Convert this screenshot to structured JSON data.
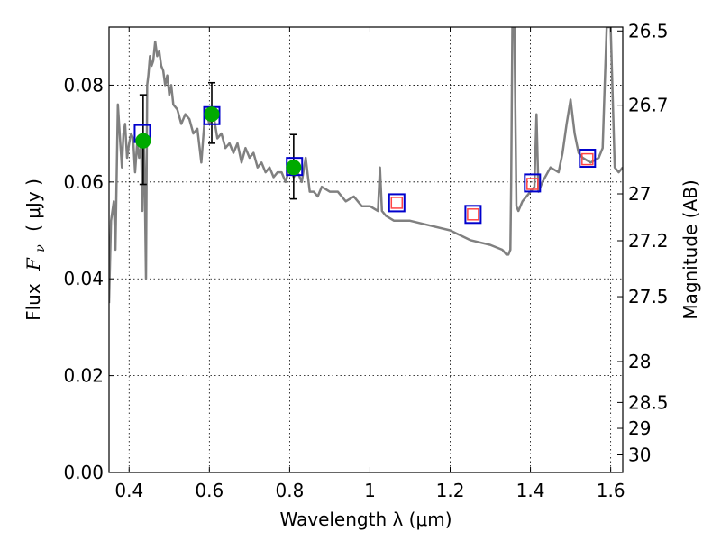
{
  "chart_data": {
    "type": "scatter",
    "xlabel": "Wavelength  λ (μm)",
    "ylabel_prefix": "Flux",
    "ylabel_symbol": "F",
    "ylabel_subscript": "ν",
    "ylabel_unit": "( μJy )",
    "y2label": "Magnitude (AB)",
    "xlim": [
      0.35,
      1.63
    ],
    "ylim": [
      0.0,
      0.092
    ],
    "grid": true,
    "x_ticks": [
      0.4,
      0.6,
      0.8,
      1.0,
      1.2,
      1.4,
      1.6
    ],
    "x_tick_labels": [
      "0.4",
      "0.6",
      "0.8",
      "1",
      "1.2",
      "1.4",
      "1.6"
    ],
    "y_ticks": [
      0.0,
      0.02,
      0.04,
      0.06,
      0.08
    ],
    "y_tick_labels": [
      "0.00",
      "0.02",
      "0.04",
      "0.06",
      "0.08"
    ],
    "y2_ticks": [
      26.5,
      26.7,
      27,
      27.2,
      27.5,
      28,
      28.5,
      29,
      30
    ],
    "y2_tick_labels": [
      "26.5",
      "26.7",
      "27",
      "27.2",
      "27.5",
      "28",
      "28.5",
      "29",
      "30"
    ],
    "colors": {
      "model": "#808080",
      "observed": "#00aa00",
      "synthetic": "#0000cc",
      "upper": "#ff4444",
      "errorbar": "#000000"
    },
    "series": [
      {
        "kind": "line",
        "x": [
          0.35,
          0.355,
          0.362,
          0.366,
          0.372,
          0.378,
          0.382,
          0.386,
          0.39,
          0.395,
          0.4,
          0.405,
          0.41,
          0.415,
          0.42,
          0.425,
          0.43,
          0.433,
          0.436,
          0.439,
          0.442,
          0.445,
          0.448,
          0.452,
          0.456,
          0.46,
          0.465,
          0.47,
          0.475,
          0.48,
          0.485,
          0.49,
          0.495,
          0.5,
          0.505,
          0.51,
          0.52,
          0.53,
          0.54,
          0.55,
          0.56,
          0.57,
          0.58,
          0.59,
          0.6,
          0.61,
          0.62,
          0.63,
          0.64,
          0.65,
          0.66,
          0.67,
          0.68,
          0.69,
          0.7,
          0.71,
          0.72,
          0.73,
          0.74,
          0.75,
          0.76,
          0.77,
          0.78,
          0.79,
          0.8,
          0.81,
          0.82,
          0.83,
          0.84,
          0.85,
          0.86,
          0.87,
          0.88,
          0.9,
          0.92,
          0.94,
          0.96,
          0.98,
          1.0,
          1.02,
          1.025,
          1.03,
          1.04,
          1.06,
          1.1,
          1.15,
          1.2,
          1.25,
          1.3,
          1.33,
          1.34,
          1.345,
          1.35,
          1.352,
          1.355,
          1.36,
          1.365,
          1.37,
          1.38,
          1.4,
          1.41,
          1.415,
          1.42,
          1.43,
          1.45,
          1.47,
          1.48,
          1.49,
          1.5,
          1.51,
          1.52,
          1.53,
          1.55,
          1.57,
          1.58,
          1.585,
          1.59,
          1.6,
          1.61,
          1.62,
          1.63
        ],
        "y": [
          0.035,
          0.052,
          0.056,
          0.046,
          0.076,
          0.068,
          0.063,
          0.07,
          0.072,
          0.065,
          0.068,
          0.07,
          0.069,
          0.062,
          0.068,
          0.065,
          0.068,
          0.054,
          0.07,
          0.06,
          0.04,
          0.08,
          0.082,
          0.086,
          0.084,
          0.085,
          0.089,
          0.086,
          0.087,
          0.084,
          0.083,
          0.08,
          0.082,
          0.078,
          0.08,
          0.076,
          0.075,
          0.072,
          0.074,
          0.073,
          0.07,
          0.071,
          0.064,
          0.075,
          0.072,
          0.074,
          0.069,
          0.07,
          0.067,
          0.068,
          0.066,
          0.068,
          0.064,
          0.067,
          0.065,
          0.066,
          0.063,
          0.064,
          0.062,
          0.063,
          0.061,
          0.062,
          0.062,
          0.06,
          0.063,
          0.061,
          0.062,
          0.06,
          0.065,
          0.058,
          0.058,
          0.057,
          0.059,
          0.058,
          0.058,
          0.056,
          0.057,
          0.055,
          0.055,
          0.054,
          0.063,
          0.054,
          0.053,
          0.052,
          0.052,
          0.051,
          0.05,
          0.048,
          0.047,
          0.046,
          0.045,
          0.045,
          0.046,
          0.06,
          0.092,
          0.092,
          0.055,
          0.054,
          0.056,
          0.058,
          0.059,
          0.074,
          0.058,
          0.06,
          0.063,
          0.062,
          0.066,
          0.072,
          0.077,
          0.07,
          0.066,
          0.065,
          0.064,
          0.065,
          0.067,
          0.08,
          0.092,
          0.092,
          0.063,
          0.062,
          0.063
        ]
      },
      {
        "kind": "points",
        "name": "observed",
        "x": [
          0.435,
          0.606,
          0.81
        ],
        "y": [
          0.0685,
          0.074,
          0.063
        ],
        "yerr_low": [
          0.0595,
          0.068,
          0.0565
        ],
        "yerr_high": [
          0.078,
          0.0805,
          0.0698
        ]
      },
      {
        "kind": "squares",
        "name": "model-bands",
        "x": [
          0.433,
          0.606,
          0.812,
          1.067,
          1.257,
          1.405,
          1.542
        ],
        "y": [
          0.07,
          0.0737,
          0.0632,
          0.0557,
          0.0533,
          0.0598,
          0.0649
        ]
      },
      {
        "kind": "upper-squares",
        "name": "upper-limits",
        "x": [
          1.067,
          1.257,
          1.405,
          1.542
        ],
        "y": [
          0.0557,
          0.0533,
          0.0596,
          0.0647
        ]
      }
    ]
  }
}
